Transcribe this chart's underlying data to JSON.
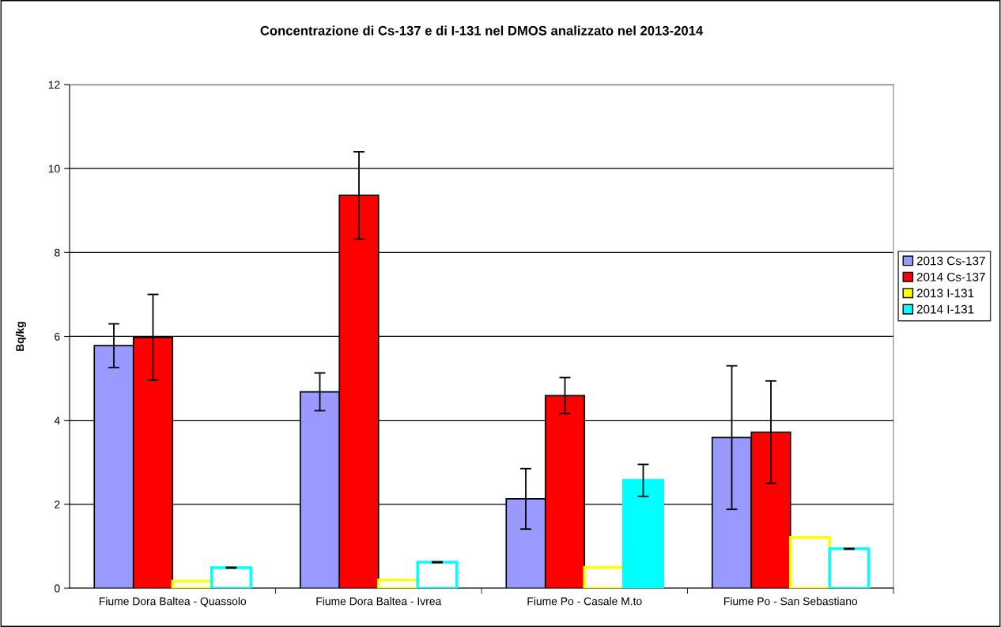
{
  "chart_data": {
    "type": "bar",
    "title": "Concentrazione di Cs-137 e di I-131 nel DMOS analizzato nel 2013-2014",
    "ylabel": "Bq/kg",
    "categories": [
      "Fiume Dora Baltea - Quassolo",
      "Fiume Dora Baltea - Ivrea",
      "Fiume Po - Casale M.to",
      "Fiume Po - San Sebastiano"
    ],
    "series": [
      {
        "name": "2013 Cs-137",
        "color": "#9999ff",
        "values": [
          5.78,
          4.68,
          2.13,
          3.59
        ],
        "errors": [
          0.52,
          0.45,
          0.72,
          1.71
        ]
      },
      {
        "name": "2014 Cs-137",
        "color": "#ff0000",
        "values": [
          5.98,
          9.36,
          4.59,
          3.72
        ],
        "errors": [
          1.02,
          1.04,
          0.43,
          1.22
        ]
      },
      {
        "name": "2013 I-131",
        "color": "#ffff00",
        "colors": [
          "#ffffff",
          "#ffffff",
          "#ffffff",
          "#ffffff"
        ],
        "values": [
          0.17,
          0.2,
          0.5,
          1.21
        ]
      },
      {
        "name": "2014 I-131",
        "color": "#00ffff",
        "colors": [
          "#ffffff",
          "#ffffff",
          "#00ffff",
          "#ffffff"
        ],
        "values": [
          0.49,
          0.62,
          2.57,
          0.94
        ],
        "errors": [
          0.01,
          0.01,
          0.38,
          0.01
        ]
      }
    ],
    "ylim": [
      0,
      12
    ],
    "yticks": [
      0,
      2,
      4,
      6,
      8,
      10,
      12
    ],
    "grid": "y",
    "legend": "right"
  }
}
